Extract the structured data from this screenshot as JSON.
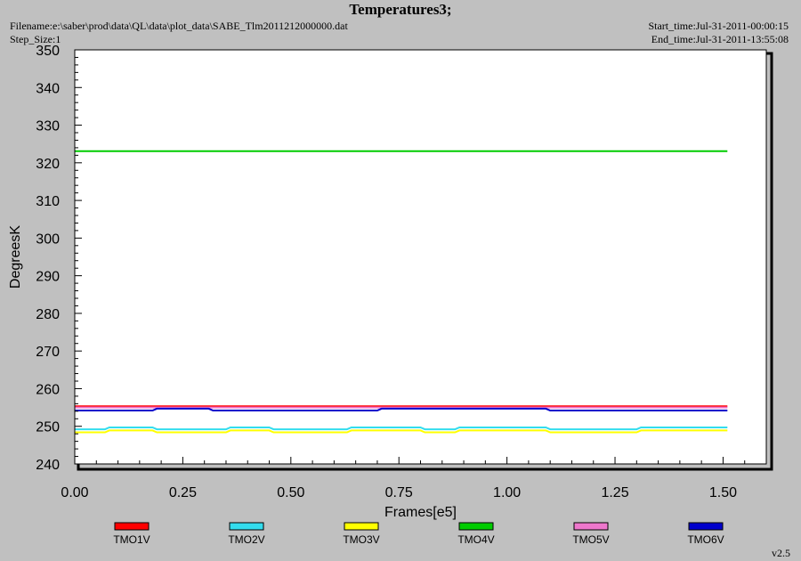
{
  "header": {
    "title": "Temperatures3;",
    "filename": "Filename:e:\\saber\\prod\\data\\QL\\data\\plot_data\\SABE_Tlm2011212000000.dat",
    "step_size": "Step_Size:1",
    "start_time": "Start_time:Jul-31-2011-00:00:15",
    "end_time": "End_time:Jul-31-2011-13:55:08"
  },
  "footer": {
    "version": "v2.5"
  },
  "chart_data": {
    "type": "line",
    "title": "Temperatures3;",
    "xlabel": "Frames[e5]",
    "ylabel": "DegreesK",
    "xlim": [
      0,
      1.6
    ],
    "ylim": [
      240,
      350
    ],
    "x_ticks": [
      "0.00",
      "0.25",
      "0.50",
      "0.75",
      "1.00",
      "1.25",
      "1.50"
    ],
    "y_ticks": [
      "240",
      "250",
      "260",
      "270",
      "280",
      "290",
      "300",
      "310",
      "320",
      "330",
      "340",
      "350"
    ],
    "legend_position": "bottom",
    "grid": false,
    "series": [
      {
        "name": "TMO1V",
        "color": "#ff0000",
        "x": [
          0,
          0.25,
          0.5,
          0.75,
          1.0,
          1.25,
          1.51
        ],
        "y": [
          255.3,
          255.3,
          255.3,
          255.3,
          255.3,
          255.3,
          255.3
        ]
      },
      {
        "name": "TMO2V",
        "color": "#33ddee",
        "x": [
          0,
          0.07,
          0.08,
          0.18,
          0.19,
          0.35,
          0.36,
          0.45,
          0.46,
          0.63,
          0.64,
          0.8,
          0.81,
          0.88,
          0.89,
          1.09,
          1.1,
          1.3,
          1.31,
          1.51
        ],
        "y": [
          249.2,
          249.2,
          249.7,
          249.7,
          249.2,
          249.2,
          249.7,
          249.7,
          249.2,
          249.2,
          249.7,
          249.7,
          249.2,
          249.2,
          249.7,
          249.7,
          249.2,
          249.2,
          249.7,
          249.7
        ]
      },
      {
        "name": "TMO3V",
        "color": "#ffff00",
        "x": [
          0,
          0.07,
          0.08,
          0.18,
          0.19,
          0.35,
          0.36,
          0.45,
          0.46,
          0.63,
          0.64,
          0.8,
          0.81,
          0.88,
          0.89,
          1.09,
          1.1,
          1.3,
          1.31,
          1.51
        ],
        "y": [
          248.4,
          248.4,
          248.9,
          248.9,
          248.4,
          248.4,
          248.9,
          248.9,
          248.4,
          248.4,
          248.9,
          248.9,
          248.4,
          248.4,
          248.9,
          248.9,
          248.4,
          248.4,
          248.9,
          248.9
        ]
      },
      {
        "name": "TMO4V",
        "color": "#00cc00",
        "x": [
          0,
          1.51
        ],
        "y": [
          323.1,
          323.1
        ]
      },
      {
        "name": "TMO5V",
        "color": "#ee77cc",
        "x": [
          0,
          0.25,
          0.5,
          0.75,
          1.0,
          1.25,
          1.51
        ],
        "y": [
          255.0,
          255.0,
          255.0,
          255.0,
          255.0,
          255.0,
          255.0
        ]
      },
      {
        "name": "TMO6V",
        "color": "#0000cc",
        "x": [
          0,
          0.18,
          0.19,
          0.31,
          0.32,
          0.7,
          0.71,
          1.09,
          1.1,
          1.51
        ],
        "y": [
          254.2,
          254.2,
          254.7,
          254.7,
          254.2,
          254.2,
          254.7,
          254.7,
          254.2,
          254.2
        ]
      }
    ]
  }
}
